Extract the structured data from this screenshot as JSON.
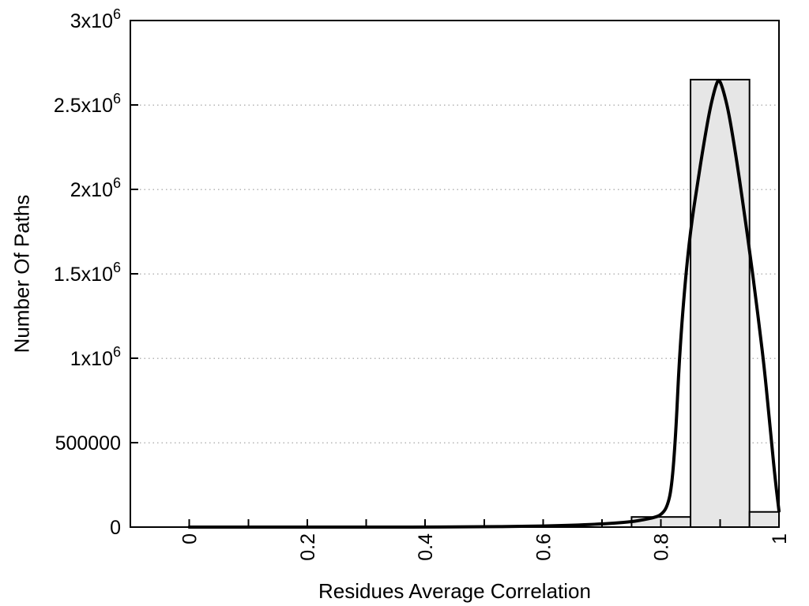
{
  "chart_data": {
    "type": "bar",
    "subtype": "histogram-with-fit-curve",
    "title": "",
    "xlabel": "Residues Average Correlation",
    "ylabel": "Number Of Paths",
    "xlim": [
      -0.1,
      1.0
    ],
    "ylim": [
      0,
      3000000
    ],
    "grid": "horizontal-dotted",
    "legend": "none",
    "x_ticks": {
      "minor_step": 0.1,
      "major": [
        {
          "value": 0,
          "label": "0"
        },
        {
          "value": 0.2,
          "label": "0.2"
        },
        {
          "value": 0.4,
          "label": "0.4"
        },
        {
          "value": 0.6,
          "label": "0.6"
        },
        {
          "value": 0.8,
          "label": "0.8"
        },
        {
          "value": 1,
          "label": "1"
        }
      ]
    },
    "y_ticks": [
      {
        "value": 0,
        "base": "0",
        "sup": ""
      },
      {
        "value": 500000,
        "base": "500000",
        "sup": ""
      },
      {
        "value": 1000000,
        "base": "1x10",
        "sup": "6"
      },
      {
        "value": 1500000,
        "base": "1.5x10",
        "sup": "6"
      },
      {
        "value": 2000000,
        "base": "2x10",
        "sup": "6"
      },
      {
        "value": 2500000,
        "base": "2.5x10",
        "sup": "6"
      },
      {
        "value": 3000000,
        "base": "3x10",
        "sup": "6"
      }
    ],
    "bars": [
      {
        "x0": 0.75,
        "x1": 0.85,
        "value": 60000
      },
      {
        "x0": 0.85,
        "x1": 0.95,
        "value": 2650000
      },
      {
        "x0": 0.95,
        "x1": 1.0,
        "value": 90000
      }
    ],
    "curve": {
      "peak": {
        "x": 0.9,
        "value": 2650000
      },
      "points": [
        [
          0.0,
          0
        ],
        [
          0.05,
          0
        ],
        [
          0.1,
          0
        ],
        [
          0.15,
          0
        ],
        [
          0.2,
          0
        ],
        [
          0.25,
          0
        ],
        [
          0.3,
          0
        ],
        [
          0.35,
          0
        ],
        [
          0.4,
          500
        ],
        [
          0.45,
          1000
        ],
        [
          0.5,
          2000
        ],
        [
          0.55,
          3600
        ],
        [
          0.6,
          6500
        ],
        [
          0.65,
          11000
        ],
        [
          0.69,
          17000
        ],
        [
          0.72,
          23000
        ],
        [
          0.75,
          32000
        ],
        [
          0.77,
          43000
        ],
        [
          0.79,
          58000
        ],
        [
          0.8,
          73000
        ],
        [
          0.81,
          115000
        ],
        [
          0.818,
          230000
        ],
        [
          0.825,
          550000
        ],
        [
          0.831,
          1000000
        ],
        [
          0.84,
          1420000
        ],
        [
          0.85,
          1760000
        ],
        [
          0.862,
          2040000
        ],
        [
          0.872,
          2260000
        ],
        [
          0.882,
          2460000
        ],
        [
          0.89,
          2580000
        ],
        [
          0.895,
          2635000
        ],
        [
          0.898,
          2650000
        ],
        [
          0.902,
          2625000
        ],
        [
          0.908,
          2555000
        ],
        [
          0.915,
          2450000
        ],
        [
          0.924,
          2265000
        ],
        [
          0.933,
          2060000
        ],
        [
          0.942,
          1840000
        ],
        [
          0.951,
          1615000
        ],
        [
          0.96,
          1375000
        ],
        [
          0.968,
          1150000
        ],
        [
          0.975,
          945000
        ],
        [
          0.982,
          700000
        ],
        [
          0.988,
          480000
        ],
        [
          0.994,
          270000
        ],
        [
          1.0,
          95000
        ]
      ]
    }
  },
  "style": {
    "background": "#ffffff",
    "axis_color": "#000000",
    "text_color": "#000000",
    "grid_color": "#b5b5b5",
    "bar_fill": "#e6e6e6",
    "bar_border": "#000000",
    "curve_color": "#000000"
  }
}
